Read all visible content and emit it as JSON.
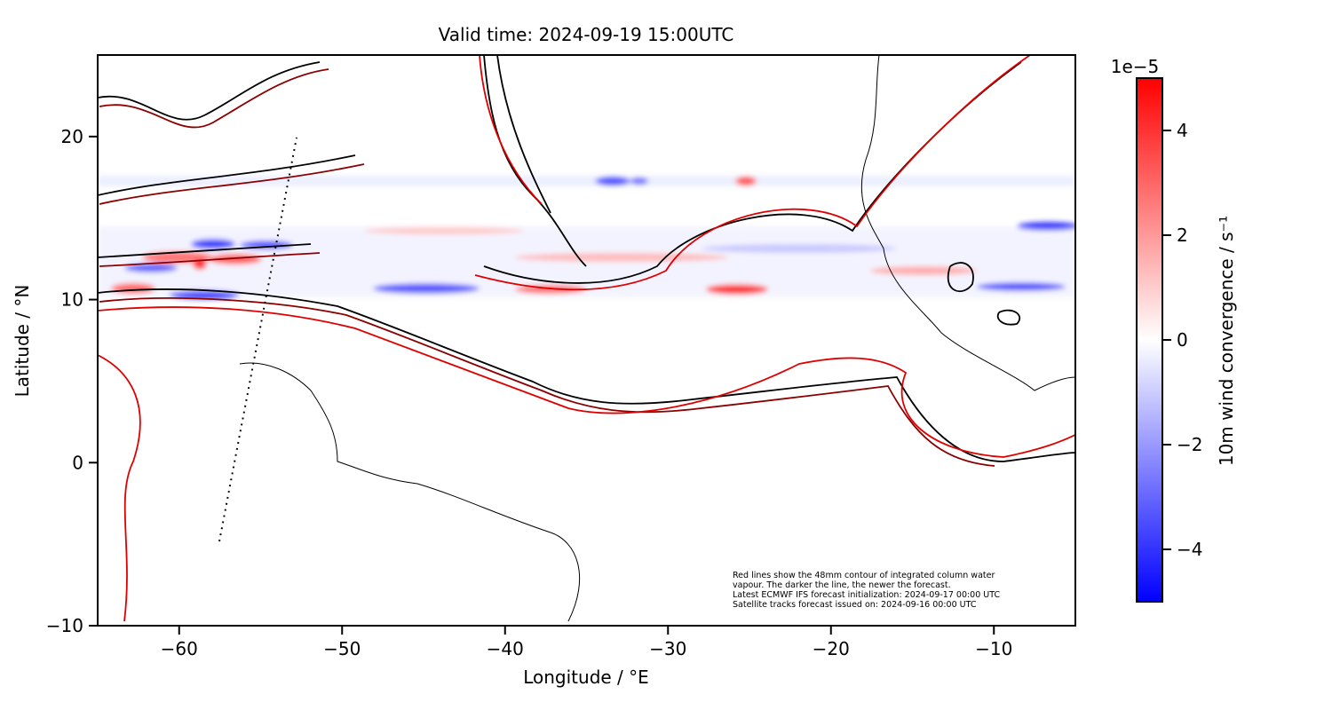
{
  "chart_data": {
    "type": "map",
    "title": "Valid time: 2024-09-19 15:00UTC",
    "x_label": "Longitude / °E",
    "y_label": "Latitude / °N",
    "xlim": [
      -65,
      -5
    ],
    "ylim": [
      -10,
      25
    ],
    "xticks": [
      {
        "value": -60,
        "label": "−60"
      },
      {
        "value": -50,
        "label": "−50"
      },
      {
        "value": -40,
        "label": "−40"
      },
      {
        "value": -30,
        "label": "−30"
      },
      {
        "value": -20,
        "label": "−20"
      },
      {
        "value": -10,
        "label": "−10"
      }
    ],
    "yticks": [
      {
        "value": -10,
        "label": "−10"
      },
      0,
      10,
      20
    ],
    "colorbar": {
      "label": "10m wind convergence / s⁻¹",
      "offset_label": "1e−5",
      "lim": [
        -5,
        5
      ],
      "ticks": [
        {
          "value": -4,
          "label": "−4"
        },
        {
          "value": -2,
          "label": "−2"
        },
        0,
        2,
        4
      ]
    },
    "annotation": [
      "Red lines show the 48mm contour of integrated column water",
      "vapour. The darker the line, the newer the forecast.",
      "Latest ECMWF IFS forecast initialization: 2024-09-17 00:00 UTC",
      "Satellite tracks forecast issued on: 2024-09-16 00:00 UTC"
    ]
  }
}
